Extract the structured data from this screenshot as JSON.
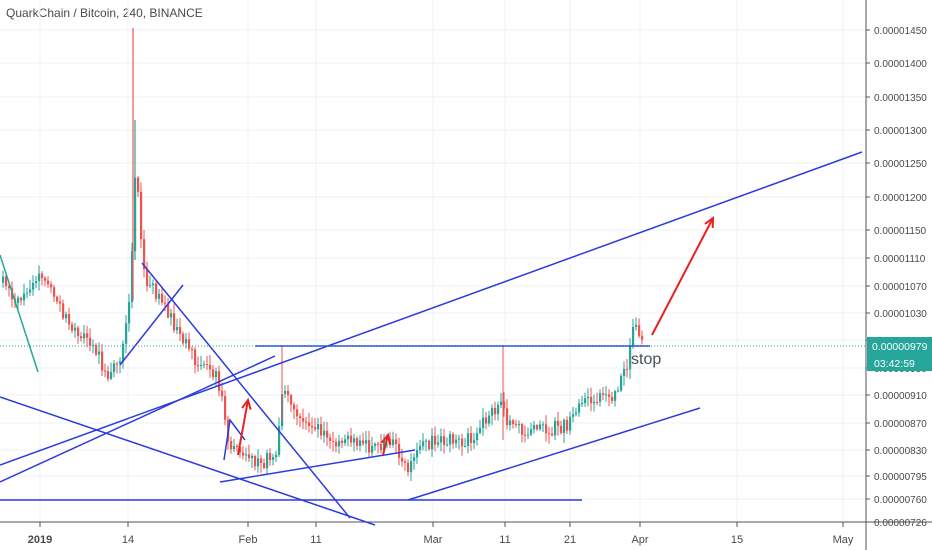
{
  "chart_data": {
    "type": "candlestick",
    "title": "QuarkChain / Bitcoin, 240, BINANCE",
    "y_ticks": [
      "0.00001450",
      "0.00001400",
      "0.00001350",
      "0.00001300",
      "0.00001250",
      "0.00001200",
      "0.00001150",
      "0.00001110",
      "0.00001070",
      "0.00001030",
      "0.00000990",
      "0.00000950",
      "0.00000910",
      "0.00000870",
      "0.00000830",
      "0.00000795",
      "0.00000760",
      "0.00000726"
    ],
    "x_ticks": [
      "2019",
      "14",
      "Feb",
      "11",
      "Mar",
      "11",
      "21",
      "Apr",
      "15",
      "May"
    ],
    "current_price": "0.00000979",
    "countdown": "03:42:59",
    "annotation": "stop",
    "grid": true,
    "colors": {
      "up": "#26a69a",
      "down": "#ef5350",
      "trendline": "#2b3be0",
      "arrow": "#e82020",
      "price_line": "#26a69a",
      "price_badge": "#26a69a"
    },
    "key_points": [
      {
        "time": "2019",
        "price": "0.00001000"
      },
      {
        "time": "14",
        "price": "0.00001450"
      },
      {
        "time": "Feb",
        "price": "0.00000830"
      },
      {
        "time": "Mar",
        "price": "0.00000760"
      },
      {
        "time": "11",
        "price": "0.00000950"
      },
      {
        "time": "Apr",
        "price": "0.00000979"
      }
    ]
  }
}
